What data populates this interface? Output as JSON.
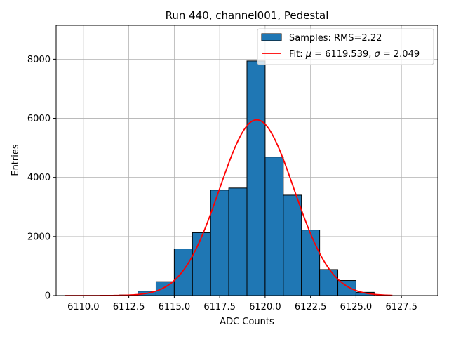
{
  "chart_data": {
    "type": "bar",
    "title": "Run 440, channel001, Pedestal",
    "xlabel": "ADC Counts",
    "ylabel": "Entries",
    "xlim": [
      6108.5,
      6129.5
    ],
    "ylim": [
      0,
      9150
    ],
    "xticks": [
      6110.0,
      6112.5,
      6115.0,
      6117.5,
      6120.0,
      6122.5,
      6125.0,
      6127.5
    ],
    "xtick_labels": [
      "6110.0",
      "6112.5",
      "6115.0",
      "6117.5",
      "6120.0",
      "6122.5",
      "6125.0",
      "6127.5"
    ],
    "yticks": [
      0,
      2000,
      4000,
      6000,
      8000
    ],
    "ytick_labels": [
      "0",
      "2000",
      "4000",
      "6000",
      "8000"
    ],
    "grid": true,
    "legend_position": "top-right",
    "histogram": {
      "name": "Samples: RMS=2.22",
      "color": "#1f77b4",
      "edge_color": "#000000",
      "bin_edges": [
        6112.0,
        6113.0,
        6114.0,
        6115.0,
        6116.0,
        6117.0,
        6118.0,
        6119.0,
        6120.0,
        6121.0,
        6122.0,
        6123.0,
        6124.0,
        6125.0,
        6126.0
      ],
      "counts": [
        20,
        150,
        470,
        1580,
        2130,
        3570,
        3640,
        7940,
        4690,
        3400,
        2220,
        880,
        510,
        110
      ]
    },
    "fit": {
      "name_prefix": "Fit: ",
      "name_mu": "μ",
      "name_mu_value": " = 6119.539, ",
      "name_sigma": "σ",
      "name_sigma_value": " = 2.049",
      "color": "#ff0000",
      "type": "gaussian",
      "mu": 6119.539,
      "sigma": 2.049,
      "amplitude": 5950,
      "x_range": [
        6109.0,
        6127.0
      ]
    }
  }
}
